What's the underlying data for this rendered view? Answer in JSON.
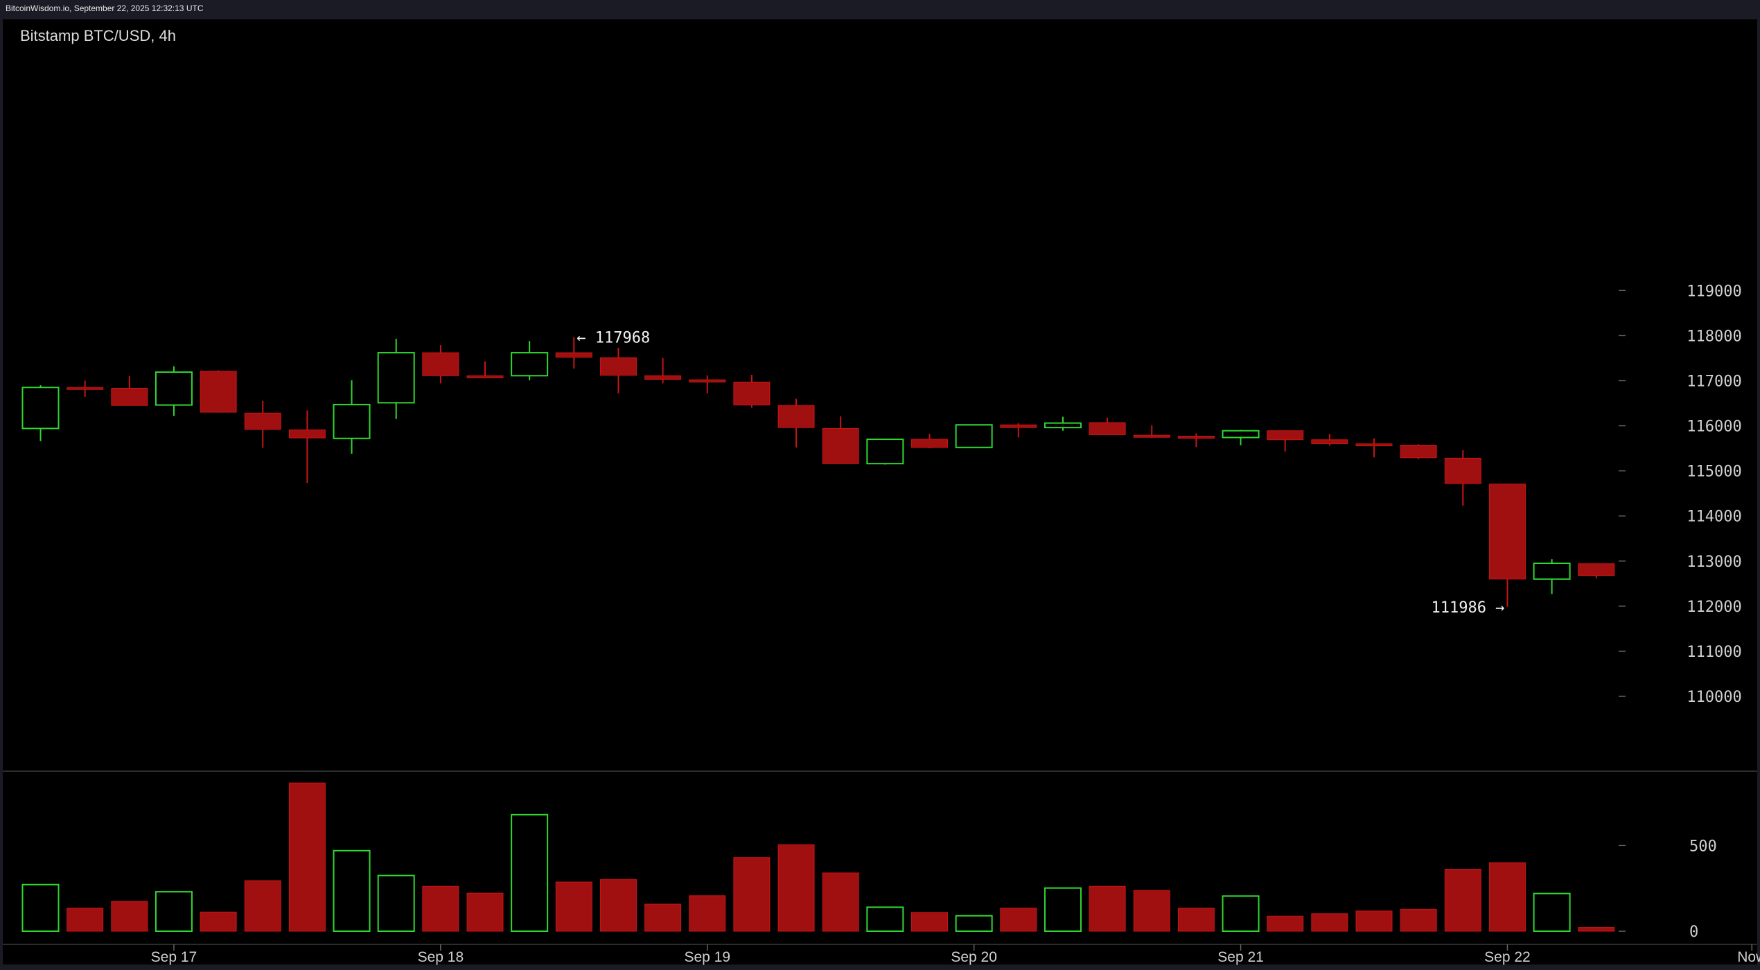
{
  "header": {
    "source": "BitcoinWisdom.io, September 22, 2025 12:32:13 UTC"
  },
  "chart_data": {
    "type": "candlestick",
    "title": "Bitstamp BTC/USD, 4h",
    "price_ticks": [
      110000,
      111000,
      112000,
      113000,
      114000,
      115000,
      116000,
      117000,
      118000,
      119000
    ],
    "volume_ticks": [
      0,
      500
    ],
    "x_labels": [
      {
        "label": "Sep 17",
        "index": 3
      },
      {
        "label": "Sep 18",
        "index": 9
      },
      {
        "label": "Sep 19",
        "index": 15
      },
      {
        "label": "Sep 20",
        "index": 21
      },
      {
        "label": "Sep 21",
        "index": 27
      },
      {
        "label": "Sep 22",
        "index": 33
      },
      {
        "label": "Now",
        "index": 38.5
      }
    ],
    "annotations": [
      {
        "text": "← 117968",
        "index": 12,
        "value": 117968,
        "side": "right"
      },
      {
        "text": "111986 →",
        "index": 33,
        "value": 111986,
        "side": "left"
      }
    ],
    "colors": {
      "up": "#2fd92f",
      "down": "#a01010",
      "down_wick": "#c81414",
      "grid_tick": "#666666",
      "text": "#d0d0d0"
    },
    "candles": [
      {
        "o": 115940,
        "h": 116900,
        "l": 115660,
        "c": 116850,
        "v": 272
      },
      {
        "o": 116850,
        "h": 117000,
        "l": 116640,
        "c": 116840,
        "v": 135
      },
      {
        "o": 116830,
        "h": 117100,
        "l": 116450,
        "c": 116450,
        "v": 175
      },
      {
        "o": 116460,
        "h": 117320,
        "l": 116220,
        "c": 117190,
        "v": 230
      },
      {
        "o": 117210,
        "h": 117230,
        "l": 116290,
        "c": 116300,
        "v": 112
      },
      {
        "o": 116280,
        "h": 116550,
        "l": 115510,
        "c": 115920,
        "v": 295
      },
      {
        "o": 115910,
        "h": 116340,
        "l": 114730,
        "c": 115730,
        "v": 865
      },
      {
        "o": 115720,
        "h": 117010,
        "l": 115380,
        "c": 116470,
        "v": 470
      },
      {
        "o": 116510,
        "h": 117930,
        "l": 116150,
        "c": 117620,
        "v": 325
      },
      {
        "o": 117620,
        "h": 117790,
        "l": 116940,
        "c": 117110,
        "v": 262
      },
      {
        "o": 117110,
        "h": 117430,
        "l": 117060,
        "c": 117100,
        "v": 222
      },
      {
        "o": 117110,
        "h": 117880,
        "l": 117010,
        "c": 117620,
        "v": 680
      },
      {
        "o": 117620,
        "h": 117968,
        "l": 117270,
        "c": 117520,
        "v": 287
      },
      {
        "o": 117510,
        "h": 117730,
        "l": 116720,
        "c": 117120,
        "v": 302
      },
      {
        "o": 117110,
        "h": 117500,
        "l": 116940,
        "c": 117030,
        "v": 158
      },
      {
        "o": 117020,
        "h": 117120,
        "l": 116720,
        "c": 116970,
        "v": 207
      },
      {
        "o": 116970,
        "h": 117130,
        "l": 116400,
        "c": 116460,
        "v": 430
      },
      {
        "o": 116450,
        "h": 116600,
        "l": 115520,
        "c": 115960,
        "v": 505
      },
      {
        "o": 115940,
        "h": 116210,
        "l": 115160,
        "c": 115160,
        "v": 340
      },
      {
        "o": 115160,
        "h": 115710,
        "l": 115140,
        "c": 115700,
        "v": 140
      },
      {
        "o": 115700,
        "h": 115820,
        "l": 115500,
        "c": 115520,
        "v": 110
      },
      {
        "o": 115520,
        "h": 116030,
        "l": 115510,
        "c": 116020,
        "v": 90
      },
      {
        "o": 116020,
        "h": 116060,
        "l": 115740,
        "c": 115960,
        "v": 135
      },
      {
        "o": 115960,
        "h": 116200,
        "l": 115890,
        "c": 116060,
        "v": 252
      },
      {
        "o": 116070,
        "h": 116180,
        "l": 115800,
        "c": 115800,
        "v": 262
      },
      {
        "o": 115790,
        "h": 116010,
        "l": 115730,
        "c": 115770,
        "v": 238
      },
      {
        "o": 115770,
        "h": 115830,
        "l": 115530,
        "c": 115740,
        "v": 135
      },
      {
        "o": 115740,
        "h": 115910,
        "l": 115570,
        "c": 115890,
        "v": 205
      },
      {
        "o": 115890,
        "h": 115900,
        "l": 115430,
        "c": 115690,
        "v": 88
      },
      {
        "o": 115690,
        "h": 115820,
        "l": 115560,
        "c": 115600,
        "v": 102
      },
      {
        "o": 115600,
        "h": 115720,
        "l": 115300,
        "c": 115570,
        "v": 118
      },
      {
        "o": 115570,
        "h": 115590,
        "l": 115260,
        "c": 115290,
        "v": 128
      },
      {
        "o": 115280,
        "h": 115460,
        "l": 114230,
        "c": 114720,
        "v": 362
      },
      {
        "o": 114710,
        "h": 114720,
        "l": 111986,
        "c": 112600,
        "v": 400
      },
      {
        "o": 112600,
        "h": 113040,
        "l": 112270,
        "c": 112950,
        "v": 220
      },
      {
        "o": 112940,
        "h": 112950,
        "l": 112620,
        "c": 112680,
        "v": 22
      }
    ]
  }
}
